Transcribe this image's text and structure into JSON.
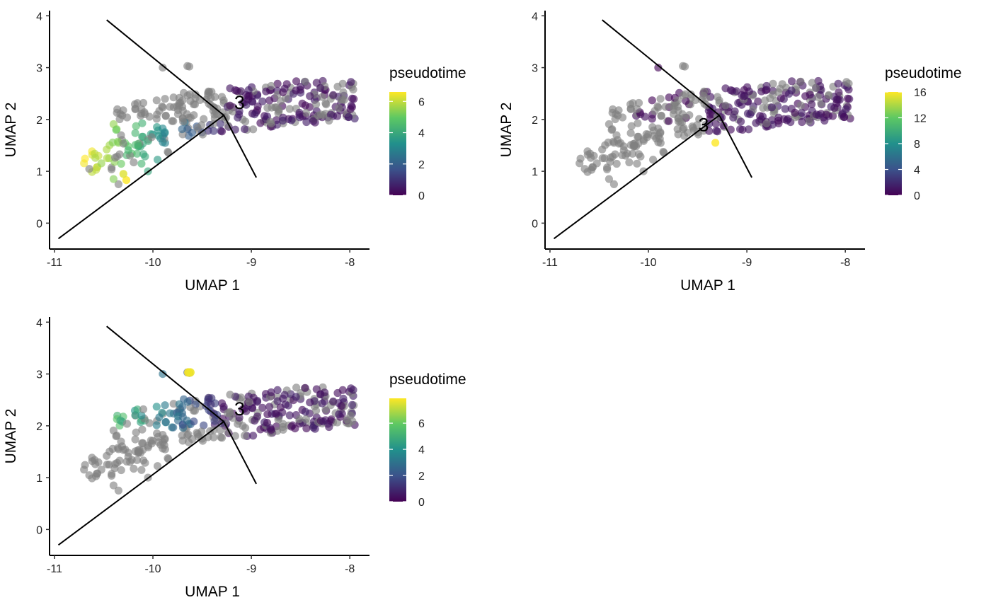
{
  "chart_data": [
    {
      "type": "scatter",
      "xlabel": "UMAP 1",
      "ylabel": "UMAP 2",
      "xlim": [
        -11.05,
        -7.8
      ],
      "ylim": [
        -0.5,
        4.1
      ],
      "x_ticks": [
        "-11",
        "-10",
        "-9",
        "-8"
      ],
      "x_tick_values": [
        -11,
        -10,
        -9,
        -8
      ],
      "y_ticks": [
        "0",
        "1",
        "2",
        "3",
        "4"
      ],
      "y_tick_values": [
        0,
        1,
        2,
        3,
        4
      ],
      "legend": {
        "title": "pseudotime",
        "max": 6.6,
        "ticks": [
          "0",
          "2",
          "4",
          "6"
        ],
        "tick_values": [
          0,
          2,
          4,
          6
        ]
      },
      "node_label": {
        "text": "3",
        "x": -9.12,
        "y": 2.3
      },
      "branch": "left"
    },
    {
      "type": "scatter",
      "xlabel": "UMAP 1",
      "ylabel": "UMAP 2",
      "xlim": [
        -11.05,
        -7.8
      ],
      "ylim": [
        -0.5,
        4.1
      ],
      "x_ticks": [
        "-11",
        "-10",
        "-9",
        "-8"
      ],
      "x_tick_values": [
        -11,
        -10,
        -9,
        -8
      ],
      "y_ticks": [
        "0",
        "1",
        "2",
        "3",
        "4"
      ],
      "y_tick_values": [
        0,
        1,
        2,
        3,
        4
      ],
      "legend": {
        "title": "pseudotime",
        "max": 16,
        "ticks": [
          "0",
          "4",
          "8",
          "12",
          "16"
        ],
        "tick_values": [
          0,
          4,
          8,
          12,
          16
        ]
      },
      "node_label": {
        "text": "3",
        "x": -9.44,
        "y": 1.87
      },
      "branch": "right"
    },
    {
      "type": "scatter",
      "xlabel": "UMAP 1",
      "ylabel": "UMAP 2",
      "xlim": [
        -11.05,
        -7.8
      ],
      "ylim": [
        -0.5,
        4.1
      ],
      "x_ticks": [
        "-11",
        "-10",
        "-9",
        "-8"
      ],
      "x_tick_values": [
        -11,
        -10,
        -9,
        -8
      ],
      "y_ticks": [
        "0",
        "1",
        "2",
        "3",
        "4"
      ],
      "y_tick_values": [
        0,
        1,
        2,
        3,
        4
      ],
      "legend": {
        "title": "pseudotime",
        "max": 7.9,
        "ticks": [
          "0",
          "2",
          "4",
          "6"
        ],
        "tick_values": [
          0,
          2,
          4,
          6
        ]
      },
      "node_label": {
        "text": "3",
        "x": -9.12,
        "y": 2.3
      },
      "branch": "upper"
    }
  ],
  "trajectory": [
    [
      -10.96,
      -0.3
    ],
    [
      -9.28,
      2.08
    ],
    [
      -8.95,
      0.88
    ],
    [
      -9.28,
      2.08
    ],
    [
      -10.47,
      3.92
    ]
  ],
  "colors": {
    "grey_cells": "#808080",
    "line": "#000000",
    "viridis": [
      "#440154",
      "#3b528b",
      "#21908c",
      "#5dc863",
      "#fde725"
    ]
  }
}
